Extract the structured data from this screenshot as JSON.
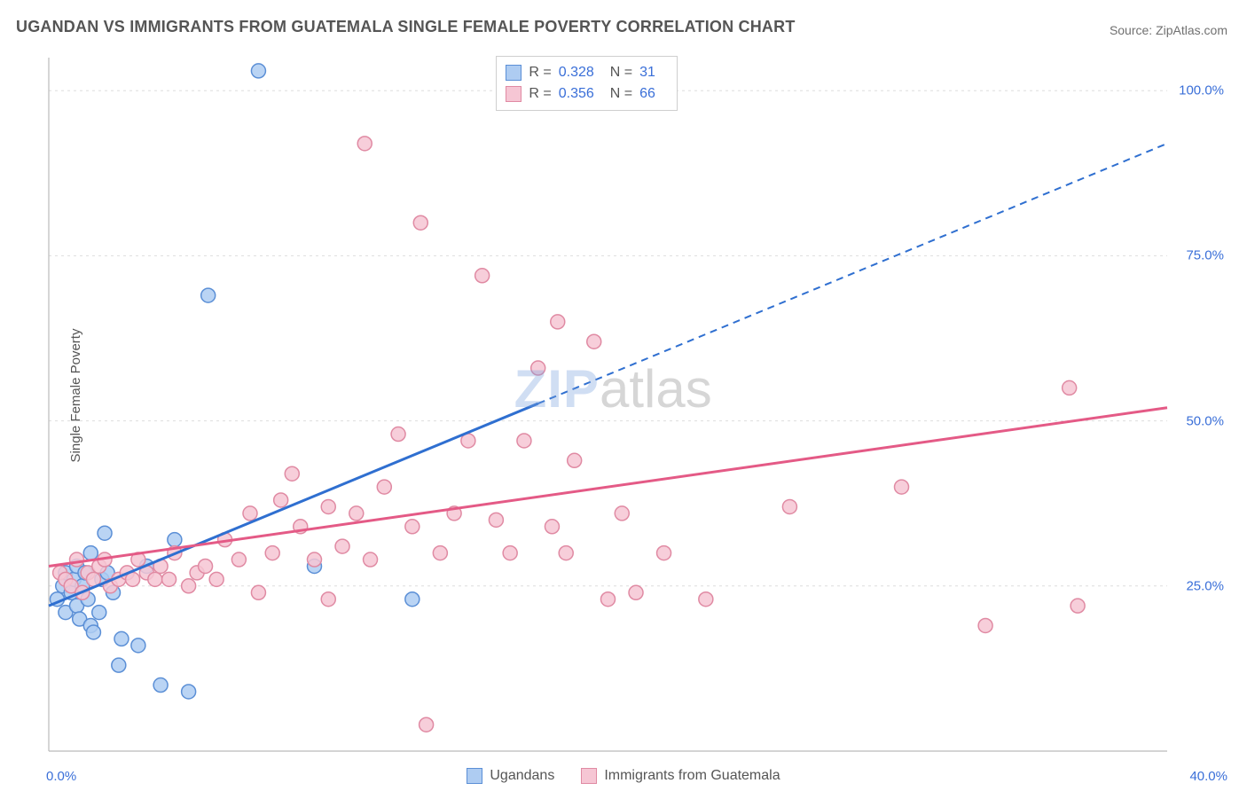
{
  "title": "UGANDAN VS IMMIGRANTS FROM GUATEMALA SINGLE FEMALE POVERTY CORRELATION CHART",
  "source_label": "Source: ZipAtlas.com",
  "ylabel": "Single Female Poverty",
  "watermark": {
    "zip": "ZIP",
    "atlas": "atlas"
  },
  "chart": {
    "type": "scatter-with-regression",
    "background_color": "#ffffff",
    "grid_color": "#dddddd",
    "axis_color": "#bbbbbb",
    "tick_label_color": "#3a6fd8",
    "text_color": "#555555",
    "xlim": [
      0,
      40
    ],
    "ylim": [
      0,
      105
    ],
    "xticks": [
      0,
      40
    ],
    "xtick_labels": [
      "0.0%",
      "40.0%"
    ],
    "yticks": [
      25,
      50,
      75,
      100
    ],
    "ytick_labels": [
      "25.0%",
      "50.0%",
      "75.0%",
      "100.0%"
    ],
    "marker_radius": 8,
    "marker_stroke_width": 1.5,
    "regression_line_width": 3,
    "series": [
      {
        "key": "ugandans",
        "label": "Ugandans",
        "fill": "#aeccf2",
        "stroke": "#5b8fd6",
        "line_color": "#2f6fd0",
        "R": "0.328",
        "N": "31",
        "regression": {
          "x1": 0,
          "y1": 22,
          "x2": 40,
          "y2": 92,
          "solid_until_x": 17.5
        },
        "points": [
          [
            0.3,
            23
          ],
          [
            0.5,
            25
          ],
          [
            0.6,
            27
          ],
          [
            0.6,
            21
          ],
          [
            0.8,
            24
          ],
          [
            0.9,
            26
          ],
          [
            1.0,
            22
          ],
          [
            1.0,
            28
          ],
          [
            1.1,
            20
          ],
          [
            1.2,
            25
          ],
          [
            1.3,
            27
          ],
          [
            1.4,
            23
          ],
          [
            1.5,
            30
          ],
          [
            1.5,
            19
          ],
          [
            1.6,
            18
          ],
          [
            1.8,
            21
          ],
          [
            1.9,
            26
          ],
          [
            2.0,
            33
          ],
          [
            2.1,
            27
          ],
          [
            2.3,
            24
          ],
          [
            2.5,
            13
          ],
          [
            2.6,
            17
          ],
          [
            3.2,
            16
          ],
          [
            3.5,
            28
          ],
          [
            4.0,
            10
          ],
          [
            4.5,
            32
          ],
          [
            5.0,
            9
          ],
          [
            5.7,
            69
          ],
          [
            7.5,
            103
          ],
          [
            9.5,
            28
          ],
          [
            13.0,
            23
          ]
        ]
      },
      {
        "key": "guatemala",
        "label": "Immigrants from Guatemala",
        "fill": "#f6c6d4",
        "stroke": "#e08aa3",
        "line_color": "#e45a86",
        "R": "0.356",
        "N": "66",
        "regression": {
          "x1": 0,
          "y1": 28,
          "x2": 40,
          "y2": 52,
          "solid_until_x": 40
        },
        "points": [
          [
            0.4,
            27
          ],
          [
            0.6,
            26
          ],
          [
            0.8,
            25
          ],
          [
            1.0,
            29
          ],
          [
            1.2,
            24
          ],
          [
            1.4,
            27
          ],
          [
            1.6,
            26
          ],
          [
            1.8,
            28
          ],
          [
            2.0,
            29
          ],
          [
            2.2,
            25
          ],
          [
            2.5,
            26
          ],
          [
            2.8,
            27
          ],
          [
            3.0,
            26
          ],
          [
            3.2,
            29
          ],
          [
            3.5,
            27
          ],
          [
            3.8,
            26
          ],
          [
            4.0,
            28
          ],
          [
            4.3,
            26
          ],
          [
            4.5,
            30
          ],
          [
            5.0,
            25
          ],
          [
            5.3,
            27
          ],
          [
            5.6,
            28
          ],
          [
            6.0,
            26
          ],
          [
            6.3,
            32
          ],
          [
            6.8,
            29
          ],
          [
            7.2,
            36
          ],
          [
            7.5,
            24
          ],
          [
            8.0,
            30
          ],
          [
            8.3,
            38
          ],
          [
            8.7,
            42
          ],
          [
            9.0,
            34
          ],
          [
            9.5,
            29
          ],
          [
            10.0,
            23
          ],
          [
            10.0,
            37
          ],
          [
            10.5,
            31
          ],
          [
            11.0,
            36
          ],
          [
            11.3,
            92
          ],
          [
            11.5,
            29
          ],
          [
            12.0,
            40
          ],
          [
            12.5,
            48
          ],
          [
            13.0,
            34
          ],
          [
            13.3,
            80
          ],
          [
            13.5,
            4
          ],
          [
            14.0,
            30
          ],
          [
            14.5,
            36
          ],
          [
            15.0,
            47
          ],
          [
            15.5,
            72
          ],
          [
            16.0,
            35
          ],
          [
            16.5,
            30
          ],
          [
            17.0,
            47
          ],
          [
            17.5,
            58
          ],
          [
            18.0,
            34
          ],
          [
            18.2,
            65
          ],
          [
            18.5,
            30
          ],
          [
            18.8,
            44
          ],
          [
            19.5,
            62
          ],
          [
            20.0,
            23
          ],
          [
            20.5,
            36
          ],
          [
            21.0,
            24
          ],
          [
            22.0,
            30
          ],
          [
            23.5,
            23
          ],
          [
            26.5,
            37
          ],
          [
            30.5,
            40
          ],
          [
            33.5,
            19
          ],
          [
            36.5,
            55
          ],
          [
            36.8,
            22
          ]
        ]
      }
    ]
  },
  "colors": {
    "title": "#555555",
    "source": "#707070"
  }
}
